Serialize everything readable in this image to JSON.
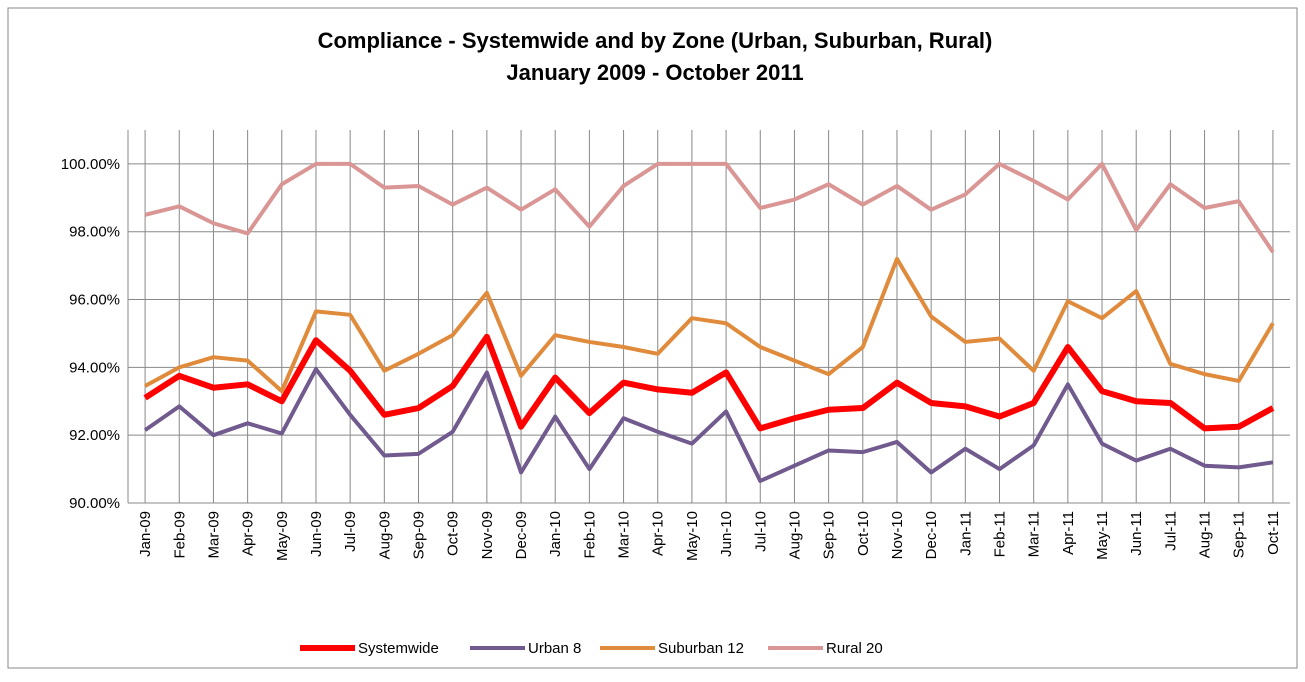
{
  "chart_data": {
    "type": "line",
    "title": "Compliance - Systemwide and by Zone (Urban, Suburban, Rural)",
    "subtitle": "January 2009 - October 2011",
    "categories": [
      "Jan-09",
      "Feb-09",
      "Mar-09",
      "Apr-09",
      "May-09",
      "Jun-09",
      "Jul-09",
      "Aug-09",
      "Sep-09",
      "Oct-09",
      "Nov-09",
      "Dec-09",
      "Jan-10",
      "Feb-10",
      "Mar-10",
      "Apr-10",
      "May-10",
      "Jun-10",
      "Jul-10",
      "Aug-10",
      "Sep-10",
      "Oct-10",
      "Nov-10",
      "Dec-10",
      "Jan-11",
      "Feb-11",
      "Mar-11",
      "Apr-11",
      "May-11",
      "Jun-11",
      "Jul-11",
      "Aug-11",
      "Sep-11",
      "Oct-11"
    ],
    "series": [
      {
        "name": "Systemwide",
        "color": "#ff0000",
        "values": [
          93.1,
          93.75,
          93.4,
          93.5,
          93.0,
          94.8,
          93.9,
          92.6,
          92.8,
          93.45,
          94.9,
          92.25,
          93.7,
          92.65,
          93.55,
          93.35,
          93.25,
          93.85,
          92.2,
          92.5,
          92.75,
          92.8,
          93.55,
          92.95,
          92.85,
          92.55,
          92.95,
          94.6,
          93.3,
          93.0,
          92.95,
          92.2,
          92.25,
          92.8
        ]
      },
      {
        "name": "Urban 8",
        "color": "#705a8e",
        "values": [
          92.15,
          92.85,
          92.0,
          92.35,
          92.05,
          93.95,
          92.6,
          91.4,
          91.45,
          92.1,
          93.85,
          90.9,
          92.55,
          91.0,
          92.5,
          92.1,
          91.75,
          92.7,
          90.65,
          91.1,
          91.55,
          91.5,
          91.8,
          90.9,
          91.6,
          91.0,
          91.7,
          93.5,
          91.75,
          91.25,
          91.6,
          91.1,
          91.05,
          91.2
        ]
      },
      {
        "name": "Suburban 12",
        "color": "#e08a3c",
        "values": [
          93.45,
          94.0,
          94.3,
          94.2,
          93.3,
          95.65,
          95.55,
          93.9,
          94.4,
          94.95,
          96.2,
          93.75,
          94.95,
          94.75,
          94.6,
          94.4,
          95.45,
          95.3,
          94.6,
          94.2,
          93.8,
          94.6,
          97.2,
          95.5,
          94.75,
          94.85,
          93.9,
          95.95,
          95.45,
          96.25,
          94.1,
          93.8,
          93.6,
          95.3
        ]
      },
      {
        "name": "Rural 20",
        "color": "#d99694",
        "values": [
          98.5,
          98.75,
          98.25,
          97.95,
          99.4,
          100,
          100,
          99.3,
          99.35,
          98.8,
          99.3,
          98.65,
          99.25,
          98.15,
          99.35,
          100,
          100,
          100,
          98.7,
          98.95,
          99.4,
          98.8,
          99.35,
          98.65,
          99.1,
          100,
          99.5,
          98.95,
          100,
          98.05,
          99.4,
          98.7,
          98.9,
          97.4
        ]
      }
    ],
    "ylim": [
      90,
      101
    ],
    "yticks": [
      {
        "value": 90,
        "label": "90.00%"
      },
      {
        "value": 92,
        "label": "92.00%"
      },
      {
        "value": 94,
        "label": "94.00%"
      },
      {
        "value": 96,
        "label": "96.00%"
      },
      {
        "value": 98,
        "label": "98.00%"
      },
      {
        "value": 100,
        "label": "100.00%"
      }
    ],
    "grid": true,
    "legend": "bottom"
  }
}
